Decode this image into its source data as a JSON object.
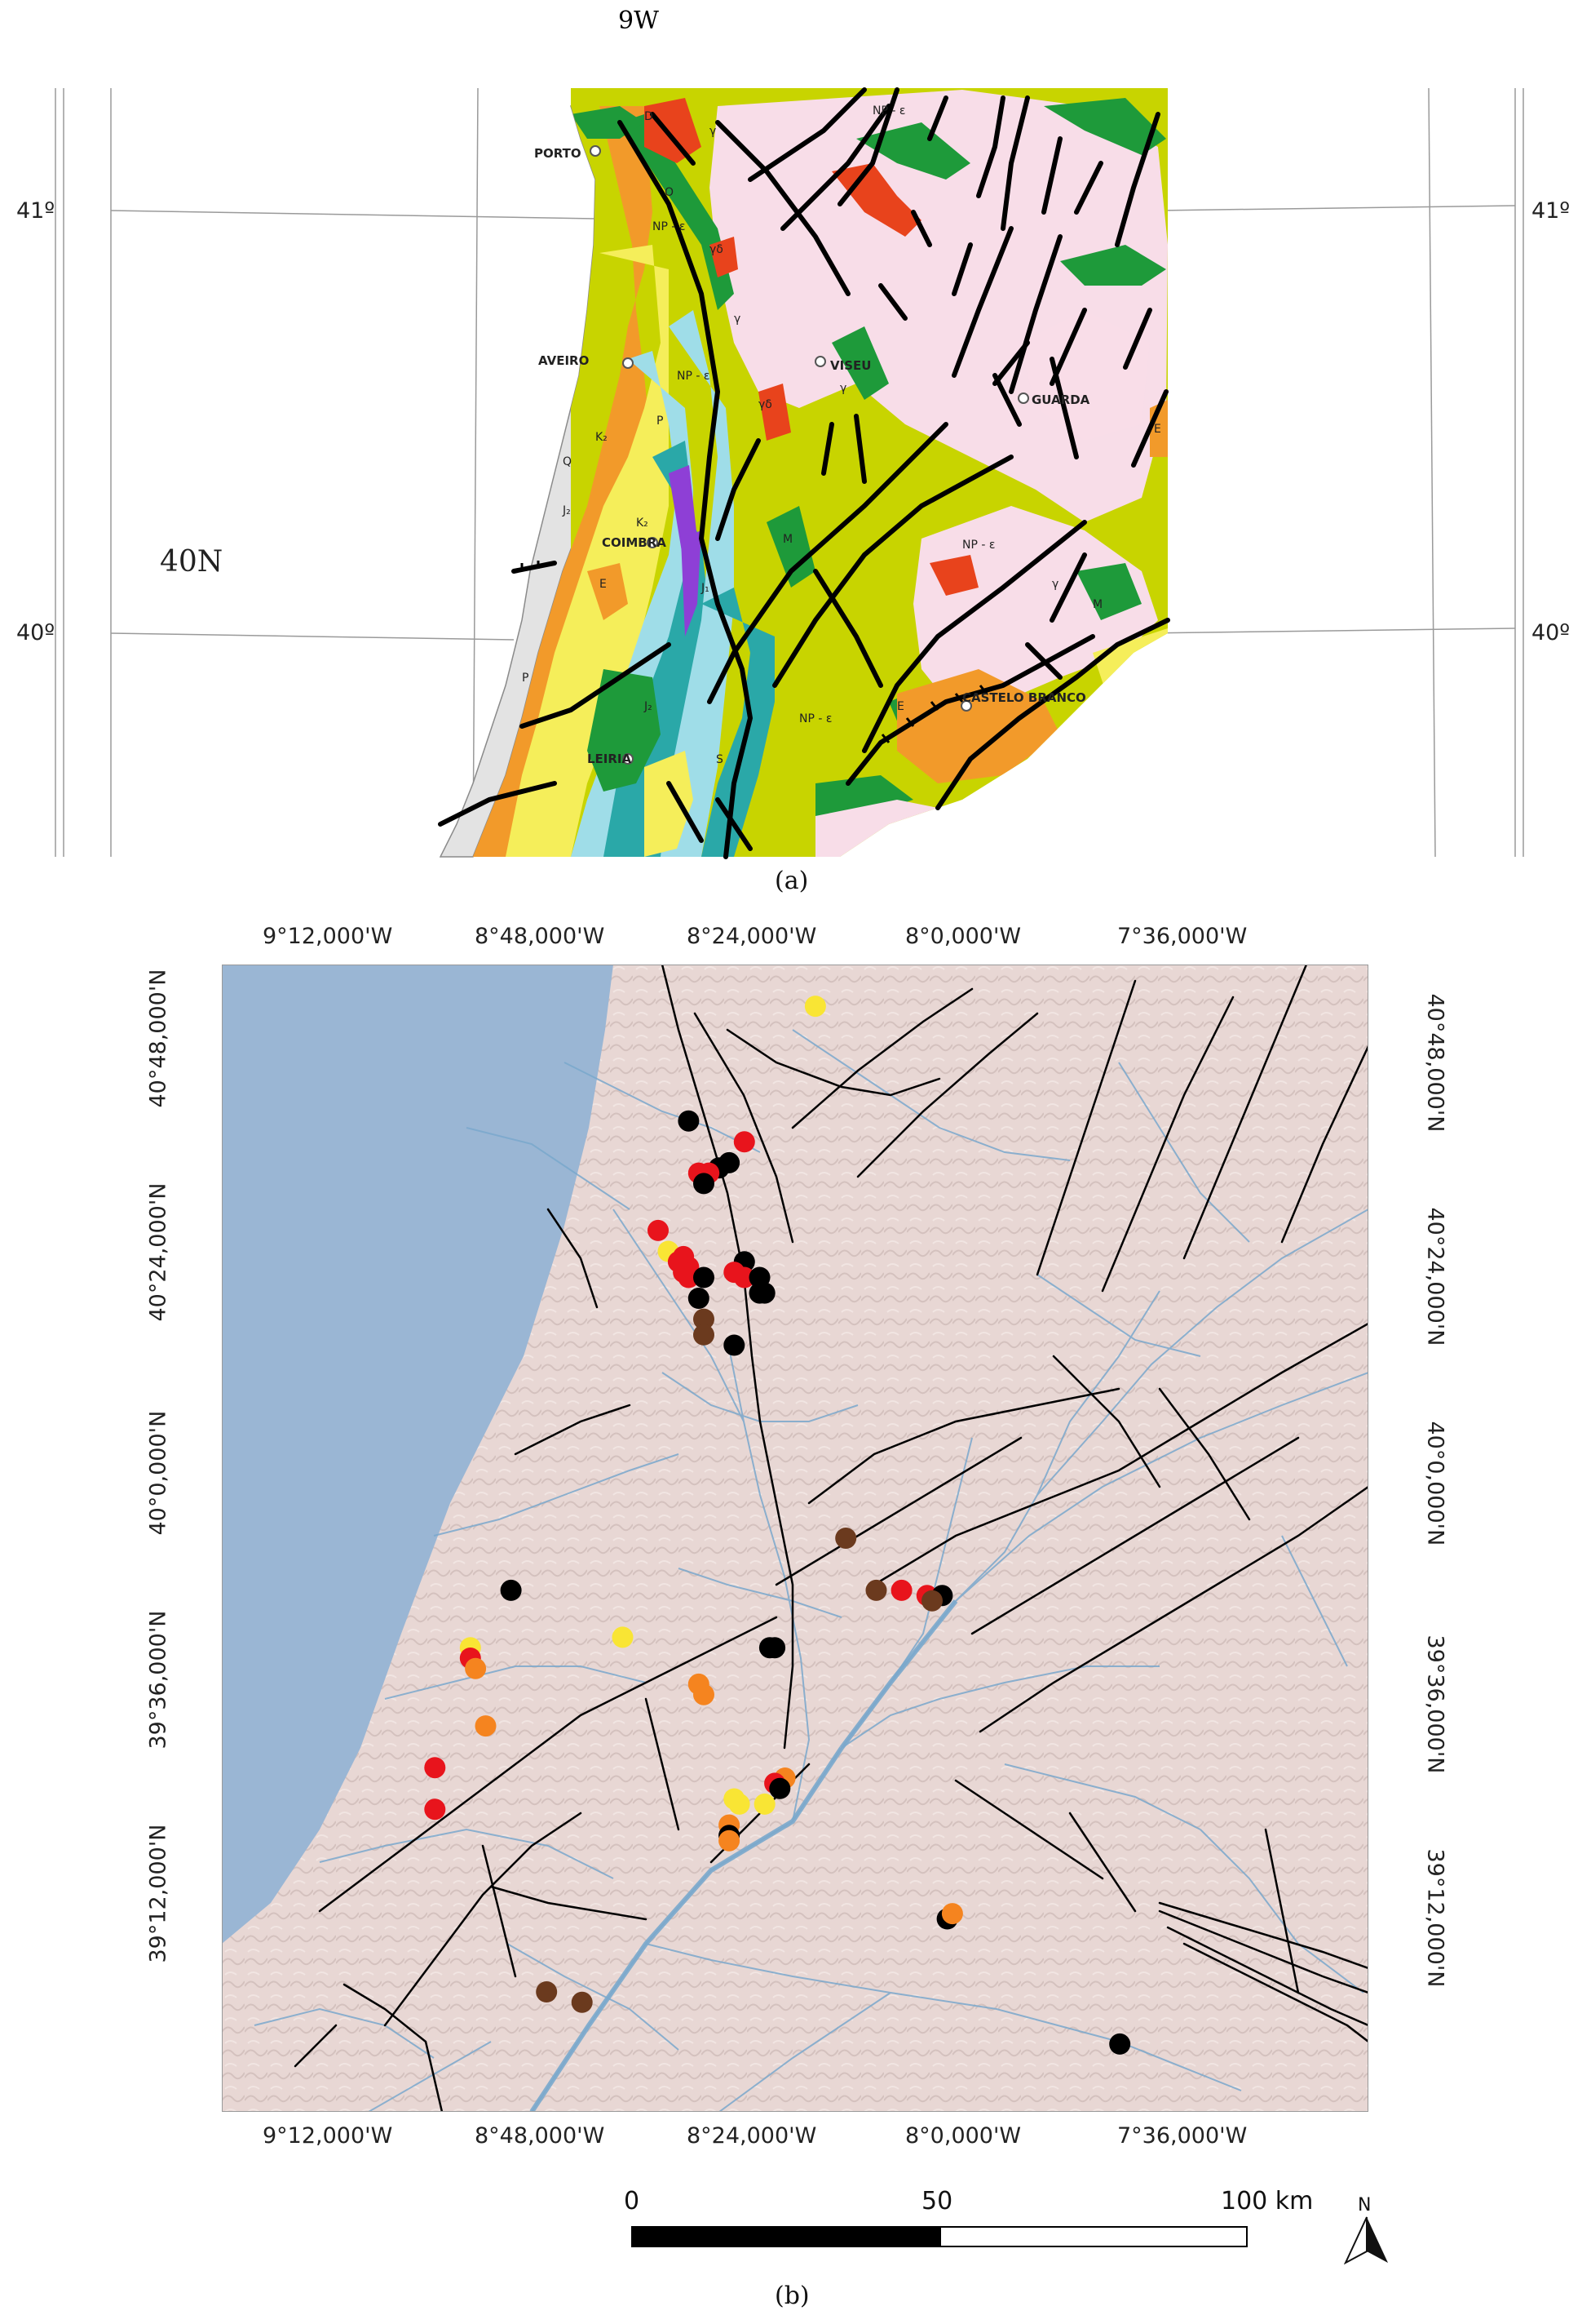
{
  "panel_a": {
    "top_label": "9W",
    "lat_label_left": "40N",
    "lat_ticks_left": [
      "41º",
      "40º"
    ],
    "lat_ticks_right": [
      "41º",
      "40º"
    ],
    "caption": "(a)",
    "cities": [
      "PORTO",
      "AVEIRO",
      "VISEU",
      "GUARDA",
      "COIMBRA",
      "CASTELO BRANCO",
      "LEIRIA"
    ],
    "unit_labels": [
      "Q",
      "NP - ε",
      "γ",
      "O",
      "M",
      "P",
      "E",
      "K₂",
      "J₂",
      "J₁",
      "S",
      "D",
      "γδ"
    ],
    "colors": {
      "sea_gray": "#e3e3e3",
      "granite_pink": "#f8dde8",
      "np_green": "#c8d400",
      "ordovician_green": "#1e9a3a",
      "red_granite": "#e8431c",
      "orange_e": "#f29a2a",
      "teal_j": "#2aa8a8",
      "lightblue_k": "#9fdde8",
      "yellow_p": "#f5ee5a",
      "purple_t": "#8e3fd6",
      "fault_black": "#000000"
    }
  },
  "panel_b": {
    "caption": "(b)",
    "lon_labels": [
      "9°12,000'W",
      "8°48,000'W",
      "8°24,000'W",
      "8°0,000'W",
      "7°36,000'W"
    ],
    "lat_labels": [
      "40°48,000'N",
      "40°24,000'N",
      "40°0,000'N",
      "39°36,000'N",
      "39°12,000'N"
    ],
    "scale": {
      "labels": [
        "0",
        "50",
        "100 km"
      ]
    },
    "north_label": "N",
    "colors": {
      "sea": "#9ab6d4",
      "land": "#e8d7d4",
      "rivers": "#7aa8cc",
      "faults": "#000000",
      "black_pt": "#000000",
      "red_pt": "#e8141c",
      "orange_pt": "#f5841f",
      "yellow_pt": "#f9e534",
      "brown_pt": "#6b3a1e"
    },
    "points": [
      {
        "lon": -8.27,
        "lat": 41.12,
        "c": "yellow_pt"
      },
      {
        "lon": -8.52,
        "lat": 40.9,
        "c": "black_pt"
      },
      {
        "lon": -8.41,
        "lat": 40.86,
        "c": "red_pt"
      },
      {
        "lon": -8.44,
        "lat": 40.82,
        "c": "black_pt"
      },
      {
        "lon": -8.46,
        "lat": 40.81,
        "c": "black_pt"
      },
      {
        "lon": -8.5,
        "lat": 40.8,
        "c": "red_pt"
      },
      {
        "lon": -8.48,
        "lat": 40.8,
        "c": "red_pt"
      },
      {
        "lon": -8.49,
        "lat": 40.78,
        "c": "black_pt"
      },
      {
        "lon": -8.58,
        "lat": 40.69,
        "c": "red_pt"
      },
      {
        "lon": -8.56,
        "lat": 40.65,
        "c": "yellow_pt"
      },
      {
        "lon": -8.53,
        "lat": 40.64,
        "c": "red_pt"
      },
      {
        "lon": -8.54,
        "lat": 40.63,
        "c": "red_pt"
      },
      {
        "lon": -8.52,
        "lat": 40.62,
        "c": "red_pt"
      },
      {
        "lon": -8.53,
        "lat": 40.61,
        "c": "red_pt"
      },
      {
        "lon": -8.52,
        "lat": 40.6,
        "c": "red_pt"
      },
      {
        "lon": -8.49,
        "lat": 40.6,
        "c": "black_pt"
      },
      {
        "lon": -8.41,
        "lat": 40.63,
        "c": "black_pt"
      },
      {
        "lon": -8.43,
        "lat": 40.61,
        "c": "red_pt"
      },
      {
        "lon": -8.41,
        "lat": 40.6,
        "c": "red_pt"
      },
      {
        "lon": -8.38,
        "lat": 40.6,
        "c": "black_pt"
      },
      {
        "lon": -8.38,
        "lat": 40.57,
        "c": "black_pt"
      },
      {
        "lon": -8.37,
        "lat": 40.57,
        "c": "black_pt"
      },
      {
        "lon": -8.5,
        "lat": 40.56,
        "c": "black_pt"
      },
      {
        "lon": -8.49,
        "lat": 40.52,
        "c": "brown_pt"
      },
      {
        "lon": -8.49,
        "lat": 40.49,
        "c": "brown_pt"
      },
      {
        "lon": -8.43,
        "lat": 40.47,
        "c": "black_pt"
      },
      {
        "lon": -8.21,
        "lat": 40.1,
        "c": "brown_pt"
      },
      {
        "lon": -8.15,
        "lat": 40.0,
        "c": "brown_pt"
      },
      {
        "lon": -8.1,
        "lat": 40.0,
        "c": "red_pt"
      },
      {
        "lon": -8.05,
        "lat": 39.99,
        "c": "red_pt"
      },
      {
        "lon": -8.02,
        "lat": 39.99,
        "c": "black_pt"
      },
      {
        "lon": -8.04,
        "lat": 39.98,
        "c": "brown_pt"
      },
      {
        "lon": -8.87,
        "lat": 40.0,
        "c": "black_pt"
      },
      {
        "lon": -8.65,
        "lat": 39.91,
        "c": "yellow_pt"
      },
      {
        "lon": -8.36,
        "lat": 39.89,
        "c": "black_pt"
      },
      {
        "lon": -8.35,
        "lat": 39.89,
        "c": "black_pt"
      },
      {
        "lon": -8.95,
        "lat": 39.89,
        "c": "yellow_pt"
      },
      {
        "lon": -8.95,
        "lat": 39.87,
        "c": "red_pt"
      },
      {
        "lon": -8.94,
        "lat": 39.85,
        "c": "orange_pt"
      },
      {
        "lon": -8.5,
        "lat": 39.82,
        "c": "orange_pt"
      },
      {
        "lon": -8.49,
        "lat": 39.8,
        "c": "orange_pt"
      },
      {
        "lon": -8.92,
        "lat": 39.74,
        "c": "orange_pt"
      },
      {
        "lon": -9.02,
        "lat": 39.66,
        "c": "red_pt"
      },
      {
        "lon": -9.02,
        "lat": 39.58,
        "c": "red_pt"
      },
      {
        "lon": -8.33,
        "lat": 39.64,
        "c": "orange_pt"
      },
      {
        "lon": -8.35,
        "lat": 39.63,
        "c": "red_pt"
      },
      {
        "lon": -8.34,
        "lat": 39.62,
        "c": "black_pt"
      },
      {
        "lon": -8.42,
        "lat": 39.59,
        "c": "yellow_pt"
      },
      {
        "lon": -8.37,
        "lat": 39.59,
        "c": "yellow_pt"
      },
      {
        "lon": -8.43,
        "lat": 39.6,
        "c": "yellow_pt"
      },
      {
        "lon": -8.44,
        "lat": 39.55,
        "c": "orange_pt"
      },
      {
        "lon": -8.44,
        "lat": 39.53,
        "c": "black_pt"
      },
      {
        "lon": -8.44,
        "lat": 39.52,
        "c": "orange_pt"
      },
      {
        "lon": -8.01,
        "lat": 39.37,
        "c": "black_pt"
      },
      {
        "lon": -8.0,
        "lat": 39.38,
        "c": "orange_pt"
      },
      {
        "lon": -8.8,
        "lat": 39.23,
        "c": "brown_pt"
      },
      {
        "lon": -8.73,
        "lat": 39.21,
        "c": "brown_pt"
      },
      {
        "lon": -7.67,
        "lat": 39.13,
        "c": "black_pt"
      }
    ]
  }
}
